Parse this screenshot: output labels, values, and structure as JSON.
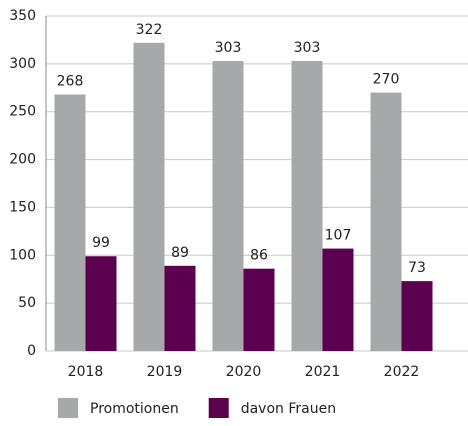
{
  "chart_data": {
    "type": "bar",
    "categories": [
      "2018",
      "2019",
      "2020",
      "2021",
      "2022"
    ],
    "series": [
      {
        "name": "Promotionen",
        "color": "#a7a8aa",
        "values": [
          268,
          322,
          303,
          303,
          270
        ]
      },
      {
        "name": "davon Frauen",
        "color": "#5c0050",
        "values": [
          99,
          89,
          86,
          107,
          73
        ]
      }
    ],
    "ylim": [
      0,
      350
    ],
    "yticks": [
      0,
      50,
      100,
      150,
      200,
      250,
      300,
      350
    ],
    "grid": true,
    "legend": "bottom"
  }
}
